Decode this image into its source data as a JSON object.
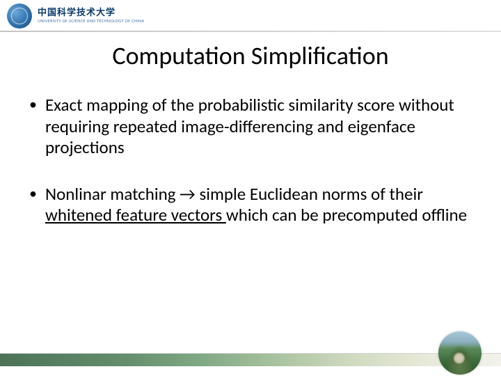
{
  "header": {
    "univ_cn": "中国科学技术大学",
    "univ_en": "UNIVERSITY OF SCIENCE AND TECHNOLOGY OF CHINA"
  },
  "title": "Computation Simplification",
  "bullets": [
    {
      "text_parts": [
        {
          "text": "Exact mapping of the probabilistic similarity score without requiring repeated image-differencing and eigenface projections",
          "underline": false
        }
      ]
    },
    {
      "text_parts": [
        {
          "text": "Nonlinar matching → simple Euclidean norms of their ",
          "underline": false
        },
        {
          "text": "whitened feature vectors ",
          "underline": true
        },
        {
          "text": "which can be precomputed offline",
          "underline": false
        }
      ]
    }
  ],
  "styles": {
    "title_fontsize": 36,
    "body_fontsize": 25,
    "title_color": "#000000",
    "body_color": "#000000",
    "background": "#ffffff",
    "footer_gradient_from": "#2d5a3a",
    "footer_gradient_to": "#f0f0e8"
  }
}
